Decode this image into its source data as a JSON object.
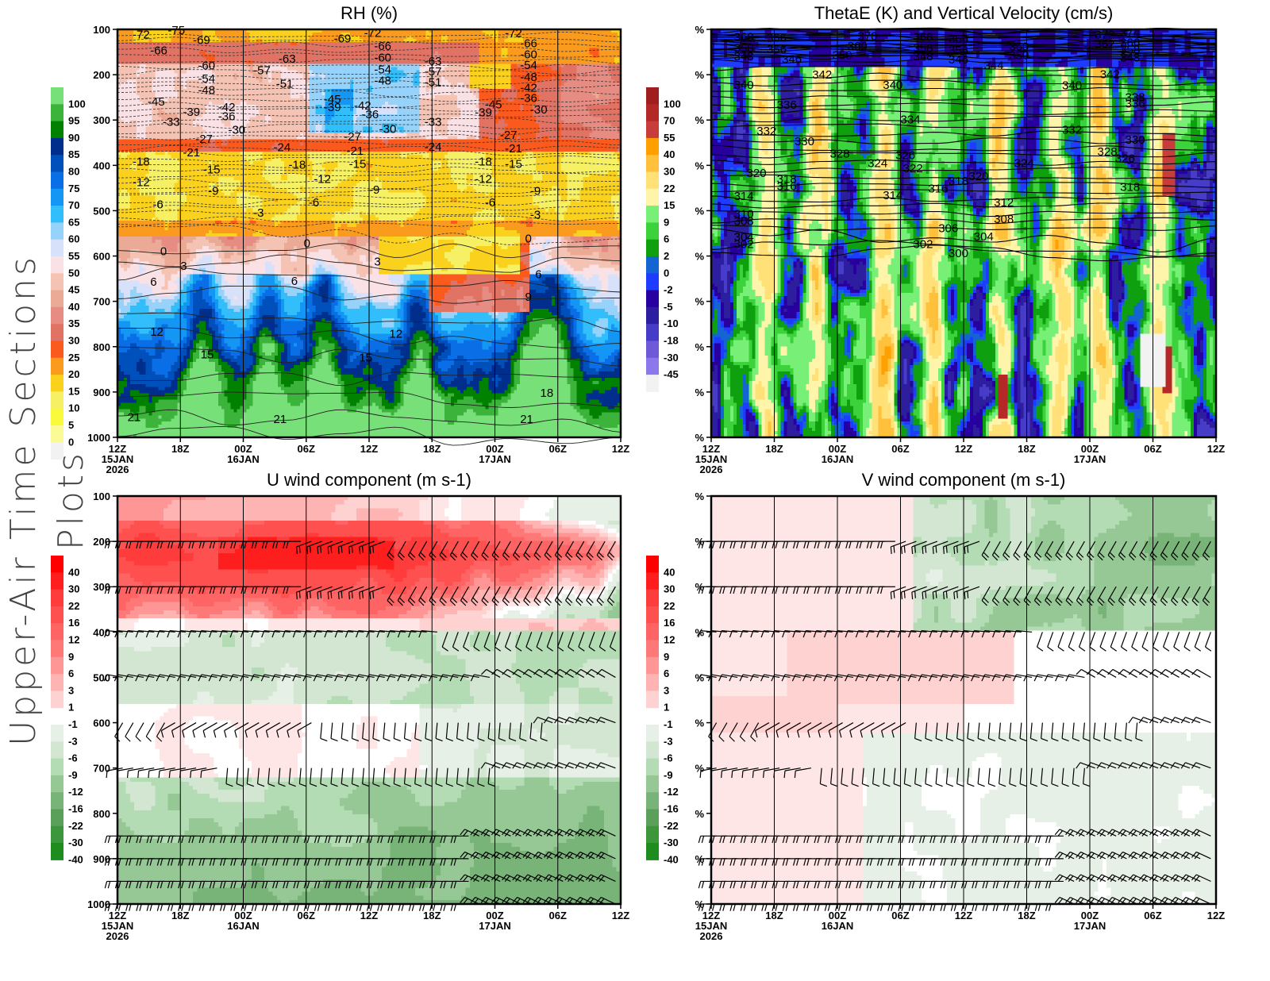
{
  "page": {
    "side_title": "Upper-Air Time Sections Plots"
  },
  "chart_data": [
    {
      "id": "rh",
      "type": "heatmap",
      "title": "RH (%)",
      "overlay": "temperature contours (dashed negative, solid positive)",
      "y_ticks": [
        "100",
        "200",
        "300",
        "400",
        "500",
        "600",
        "700",
        "800",
        "900",
        "1000"
      ],
      "y_range": [
        100,
        1000
      ],
      "x_ticks": [
        {
          "time": "12Z",
          "date": "15JAN",
          "year": "2026"
        },
        {
          "time": "18Z",
          "date": "",
          "year": ""
        },
        {
          "time": "00Z",
          "date": "16JAN",
          "year": ""
        },
        {
          "time": "06Z",
          "date": "",
          "year": ""
        },
        {
          "time": "12Z",
          "date": "",
          "year": ""
        },
        {
          "time": "18Z",
          "date": "",
          "year": ""
        },
        {
          "time": "00Z",
          "date": "17JAN",
          "year": ""
        },
        {
          "time": "06Z",
          "date": "",
          "year": ""
        },
        {
          "time": "12Z",
          "date": "",
          "year": ""
        }
      ],
      "colorbar": {
        "labels": [
          "100",
          "95",
          "90",
          "85",
          "80",
          "75",
          "70",
          "65",
          "60",
          "55",
          "50",
          "45",
          "40",
          "35",
          "30",
          "25",
          "20",
          "15",
          "10",
          "5",
          "0"
        ],
        "colors": [
          "#78e078",
          "#3cb43c",
          "#008200",
          "#002e8c",
          "#0050bc",
          "#0a6ee6",
          "#1496f5",
          "#32befa",
          "#96d2fa",
          "#d7e1fa",
          "#fae1e6",
          "#f5c3b4",
          "#ebaa96",
          "#e68c82",
          "#e17364",
          "#fa5a1e",
          "#fa9b1e",
          "#fad21e",
          "#f5f064",
          "#fafa3c",
          "#fafa96",
          "#f2f2f2"
        ]
      },
      "contour_labels": [
        {
          "v": "-72",
          "t": 0.03,
          "p": 110
        },
        {
          "v": "-75",
          "t": 0.1,
          "p": 100
        },
        {
          "v": "-69",
          "t": 0.15,
          "p": 122
        },
        {
          "v": "-66",
          "t": 0.065,
          "p": 145
        },
        {
          "v": "-60",
          "t": 0.16,
          "p": 178
        },
        {
          "v": "-54",
          "t": 0.16,
          "p": 207
        },
        {
          "v": "-48",
          "t": 0.16,
          "p": 232
        },
        {
          "v": "-45",
          "t": 0.06,
          "p": 258
        },
        {
          "v": "-39",
          "t": 0.13,
          "p": 280
        },
        {
          "v": "-42",
          "t": 0.2,
          "p": 270
        },
        {
          "v": "-36",
          "t": 0.2,
          "p": 290
        },
        {
          "v": "-33",
          "t": 0.09,
          "p": 302
        },
        {
          "v": "-30",
          "t": 0.22,
          "p": 320
        },
        {
          "v": "-27",
          "t": 0.155,
          "p": 340
        },
        {
          "v": "-21",
          "t": 0.13,
          "p": 370
        },
        {
          "v": "-18",
          "t": 0.03,
          "p": 390
        },
        {
          "v": "-15",
          "t": 0.17,
          "p": 407
        },
        {
          "v": "-12",
          "t": 0.03,
          "p": 435
        },
        {
          "v": "-9",
          "t": 0.18,
          "p": 455
        },
        {
          "v": "-6",
          "t": 0.07,
          "p": 484
        },
        {
          "v": "-57",
          "t": 0.27,
          "p": 188
        },
        {
          "v": "-63",
          "t": 0.32,
          "p": 163
        },
        {
          "v": "-51",
          "t": 0.315,
          "p": 218
        },
        {
          "v": "-24",
          "t": 0.31,
          "p": 358
        },
        {
          "v": "-18",
          "t": 0.34,
          "p": 397
        },
        {
          "v": "-3",
          "t": 0.27,
          "p": 503
        },
        {
          "v": "-12",
          "t": 0.39,
          "p": 428
        },
        {
          "v": "-6",
          "t": 0.38,
          "p": 480
        },
        {
          "v": "-69",
          "t": 0.43,
          "p": 118
        },
        {
          "v": "-72",
          "t": 0.49,
          "p": 106
        },
        {
          "v": "-66",
          "t": 0.51,
          "p": 135
        },
        {
          "v": "-60",
          "t": 0.51,
          "p": 160
        },
        {
          "v": "-54",
          "t": 0.51,
          "p": 187
        },
        {
          "v": "-48",
          "t": 0.51,
          "p": 211
        },
        {
          "v": "-45",
          "t": 0.41,
          "p": 252
        },
        {
          "v": "-39",
          "t": 0.41,
          "p": 270
        },
        {
          "v": "-42",
          "t": 0.47,
          "p": 266
        },
        {
          "v": "-36",
          "t": 0.485,
          "p": 286
        },
        {
          "v": "-30",
          "t": 0.52,
          "p": 318
        },
        {
          "v": "-27",
          "t": 0.45,
          "p": 335
        },
        {
          "v": "-21",
          "t": 0.455,
          "p": 366
        },
        {
          "v": "-15",
          "t": 0.46,
          "p": 395
        },
        {
          "v": "-9",
          "t": 0.5,
          "p": 452
        },
        {
          "v": "-63",
          "t": 0.61,
          "p": 168
        },
        {
          "v": "-57",
          "t": 0.61,
          "p": 191
        },
        {
          "v": "-51",
          "t": 0.61,
          "p": 215
        },
        {
          "v": "-33",
          "t": 0.61,
          "p": 302
        },
        {
          "v": "-24",
          "t": 0.61,
          "p": 357
        },
        {
          "v": "-45",
          "t": 0.73,
          "p": 264
        },
        {
          "v": "-39",
          "t": 0.71,
          "p": 281
        },
        {
          "v": "-18",
          "t": 0.71,
          "p": 390
        },
        {
          "v": "-12",
          "t": 0.71,
          "p": 428
        },
        {
          "v": "-6",
          "t": 0.73,
          "p": 480
        },
        {
          "v": "-27",
          "t": 0.76,
          "p": 331
        },
        {
          "v": "-21",
          "t": 0.77,
          "p": 361
        },
        {
          "v": "-15",
          "t": 0.77,
          "p": 395
        },
        {
          "v": "-72",
          "t": 0.77,
          "p": 106
        },
        {
          "v": "-66",
          "t": 0.8,
          "p": 129
        },
        {
          "v": "-60",
          "t": 0.8,
          "p": 153
        },
        {
          "v": "-54",
          "t": 0.8,
          "p": 177
        },
        {
          "v": "-48",
          "t": 0.8,
          "p": 203
        },
        {
          "v": "-42",
          "t": 0.8,
          "p": 227
        },
        {
          "v": "-36",
          "t": 0.8,
          "p": 250
        },
        {
          "v": "-30",
          "t": 0.82,
          "p": 275
        },
        {
          "v": "-9",
          "t": 0.82,
          "p": 455
        },
        {
          "v": "-3",
          "t": 0.82,
          "p": 507
        },
        {
          "v": "0",
          "t": 0.085,
          "p": 588
        },
        {
          "v": "3",
          "t": 0.125,
          "p": 620
        },
        {
          "v": "6",
          "t": 0.065,
          "p": 655
        },
        {
          "v": "0",
          "t": 0.37,
          "p": 570
        },
        {
          "v": "6",
          "t": 0.345,
          "p": 653
        },
        {
          "v": "3",
          "t": 0.51,
          "p": 610
        },
        {
          "v": "0",
          "t": 0.81,
          "p": 560
        },
        {
          "v": "6",
          "t": 0.83,
          "p": 638
        },
        {
          "v": "9",
          "t": 0.81,
          "p": 688
        },
        {
          "v": "12",
          "t": 0.065,
          "p": 765
        },
        {
          "v": "15",
          "t": 0.165,
          "p": 815
        },
        {
          "v": "12",
          "t": 0.54,
          "p": 770
        },
        {
          "v": "15",
          "t": 0.48,
          "p": 822
        },
        {
          "v": "18",
          "t": 0.84,
          "p": 900
        },
        {
          "v": "21",
          "t": 0.02,
          "p": 954
        },
        {
          "v": "21",
          "t": 0.31,
          "p": 958
        },
        {
          "v": "21",
          "t": 0.8,
          "p": 958
        }
      ]
    },
    {
      "id": "thetae",
      "type": "heatmap",
      "title": "ThetaE (K) and Vertical Velocity (cm/s)",
      "overlay": "equivalent potential temperature contours",
      "y_tick_label": "%",
      "colorbar": {
        "labels": [
          "100",
          "70",
          "55",
          "40",
          "30",
          "22",
          "15",
          "9",
          "6",
          "2",
          "0",
          "-2",
          "-5",
          "-10",
          "-18",
          "-30",
          "-45"
        ],
        "colors": [
          "#a01e1e",
          "#b42828",
          "#c83c3c",
          "#ffa000",
          "#ffc03c",
          "#ffe178",
          "#fff5aa",
          "#78f078",
          "#3cd23c",
          "#0fa00f",
          "#1464d2",
          "#1e3cff",
          "#2800a0",
          "#2d1ea0",
          "#463cc8",
          "#6e5ad7",
          "#8c78eb",
          "#f2f2f2"
        ]
      },
      "contour_labels": [
        {
          "v": "368",
          "t": 0.045,
          "p": 115
        },
        {
          "v": "366",
          "t": 0.11,
          "p": 117
        },
        {
          "v": "358",
          "t": 0.045,
          "p": 139
        },
        {
          "v": "356",
          "t": 0.11,
          "p": 142
        },
        {
          "v": "348",
          "t": 0.045,
          "p": 158
        },
        {
          "v": "346",
          "t": 0.14,
          "p": 164
        },
        {
          "v": "370",
          "t": 0.29,
          "p": 113
        },
        {
          "v": "360",
          "t": 0.27,
          "p": 135
        },
        {
          "v": "350",
          "t": 0.24,
          "p": 155
        },
        {
          "v": "368",
          "t": 0.4,
          "p": 115
        },
        {
          "v": "366",
          "t": 0.47,
          "p": 119
        },
        {
          "v": "358",
          "t": 0.4,
          "p": 139
        },
        {
          "v": "356",
          "t": 0.47,
          "p": 145
        },
        {
          "v": "348",
          "t": 0.4,
          "p": 158
        },
        {
          "v": "346",
          "t": 0.47,
          "p": 165
        },
        {
          "v": "344",
          "t": 0.54,
          "p": 178
        },
        {
          "v": "360",
          "t": 0.59,
          "p": 136
        },
        {
          "v": "350",
          "t": 0.59,
          "p": 155
        },
        {
          "v": "372",
          "t": 0.76,
          "p": 110
        },
        {
          "v": "374",
          "t": 0.81,
          "p": 105
        },
        {
          "v": "362",
          "t": 0.76,
          "p": 131
        },
        {
          "v": "366",
          "t": 0.81,
          "p": 127
        },
        {
          "v": "358",
          "t": 0.81,
          "p": 143
        },
        {
          "v": "348",
          "t": 0.81,
          "p": 160
        },
        {
          "v": "342",
          "t": 0.2,
          "p": 198
        },
        {
          "v": "340",
          "t": 0.045,
          "p": 221
        },
        {
          "v": "340",
          "t": 0.34,
          "p": 221
        },
        {
          "v": "342",
          "t": 0.77,
          "p": 197
        },
        {
          "v": "340",
          "t": 0.695,
          "p": 222
        },
        {
          "v": "338",
          "t": 0.82,
          "p": 248
        },
        {
          "v": "336",
          "t": 0.13,
          "p": 265
        },
        {
          "v": "336",
          "t": 0.82,
          "p": 262
        },
        {
          "v": "334",
          "t": 0.375,
          "p": 297
        },
        {
          "v": "332",
          "t": 0.09,
          "p": 322
        },
        {
          "v": "332",
          "t": 0.695,
          "p": 320
        },
        {
          "v": "330",
          "t": 0.165,
          "p": 345
        },
        {
          "v": "330",
          "t": 0.82,
          "p": 342
        },
        {
          "v": "328",
          "t": 0.235,
          "p": 372
        },
        {
          "v": "328",
          "t": 0.765,
          "p": 368
        },
        {
          "v": "326",
          "t": 0.365,
          "p": 376
        },
        {
          "v": "326",
          "t": 0.8,
          "p": 383
        },
        {
          "v": "324",
          "t": 0.31,
          "p": 393
        },
        {
          "v": "324",
          "t": 0.6,
          "p": 393
        },
        {
          "v": "322",
          "t": 0.38,
          "p": 405
        },
        {
          "v": "320",
          "t": 0.07,
          "p": 415
        },
        {
          "v": "320",
          "t": 0.51,
          "p": 422
        },
        {
          "v": "318",
          "t": 0.13,
          "p": 428
        },
        {
          "v": "318",
          "t": 0.47,
          "p": 433
        },
        {
          "v": "318",
          "t": 0.81,
          "p": 446
        },
        {
          "v": "316",
          "t": 0.13,
          "p": 444
        },
        {
          "v": "316",
          "t": 0.43,
          "p": 449
        },
        {
          "v": "314",
          "t": 0.045,
          "p": 466
        },
        {
          "v": "314",
          "t": 0.34,
          "p": 464
        },
        {
          "v": "312",
          "t": 0.56,
          "p": 480
        },
        {
          "v": "310",
          "t": 0.045,
          "p": 505
        },
        {
          "v": "308",
          "t": 0.045,
          "p": 521
        },
        {
          "v": "308",
          "t": 0.56,
          "p": 517
        },
        {
          "v": "306",
          "t": 0.45,
          "p": 537
        },
        {
          "v": "304",
          "t": 0.045,
          "p": 556
        },
        {
          "v": "304",
          "t": 0.52,
          "p": 555
        },
        {
          "v": "302",
          "t": 0.045,
          "p": 572
        },
        {
          "v": "302",
          "t": 0.4,
          "p": 572
        },
        {
          "v": "300",
          "t": 0.47,
          "p": 592
        }
      ]
    },
    {
      "id": "uwind",
      "type": "heatmap",
      "title": "U wind component (m s-1)",
      "overlay": "wind barbs",
      "colorbar": {
        "labels": [
          "40",
          "30",
          "22",
          "16",
          "12",
          "9",
          "6",
          "3",
          "1",
          "-1",
          "-3",
          "-6",
          "-9",
          "-12",
          "-16",
          "-22",
          "-30",
          "-40"
        ],
        "colors": [
          "#ff0000",
          "#ff1e1e",
          "#ff3c3c",
          "#ff5050",
          "#ff6464",
          "#ff7878",
          "#ff9696",
          "#ffb4b4",
          "#ffd2d2",
          "#ffe6e6",
          "#ffffff",
          "#e6f0e6",
          "#d2e6d2",
          "#b4dcb4",
          "#96c896",
          "#78b478",
          "#5aa05a",
          "#3c963c",
          "#1e8c1e"
        ]
      },
      "barb_levels_hpa": [
        200,
        300,
        400,
        500,
        600,
        700,
        850,
        900,
        950,
        1000
      ]
    },
    {
      "id": "vwind",
      "type": "heatmap",
      "title": "V wind component (m s-1)",
      "overlay": "wind barbs",
      "y_tick_label": "%",
      "colorbar": {
        "labels": [
          "40",
          "30",
          "22",
          "16",
          "12",
          "9",
          "6",
          "3",
          "1",
          "-1",
          "-3",
          "-6",
          "-9",
          "-12",
          "-16",
          "-22",
          "-30",
          "-40"
        ]
      },
      "barb_levels_hpa": [
        200,
        300,
        400,
        500,
        600,
        700,
        850,
        900,
        950,
        1000
      ]
    }
  ]
}
